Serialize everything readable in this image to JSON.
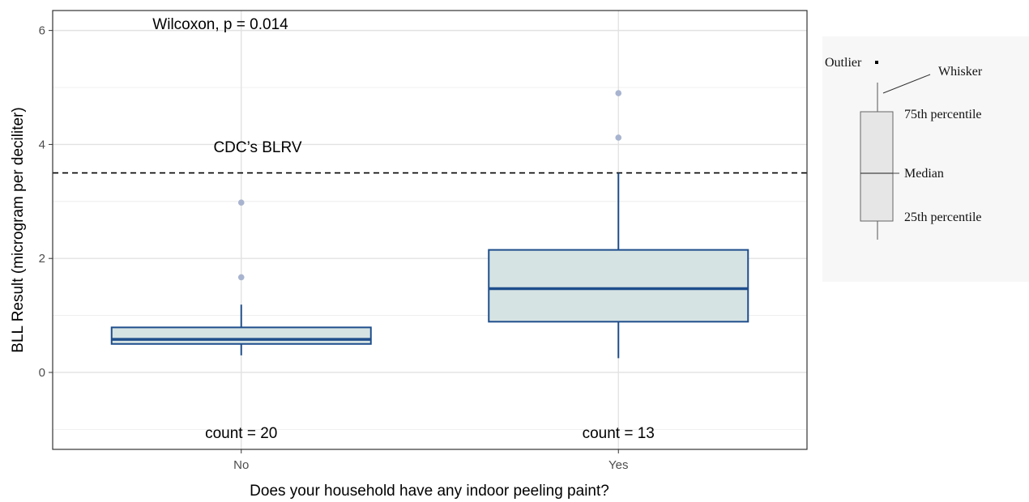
{
  "chart_data": {
    "type": "box",
    "xlabel": "Does your household have any indoor peeling paint?",
    "ylabel": "BLL Result (microgram per deciliter)",
    "ylim": [
      -1.35,
      6.35
    ],
    "yticks": [
      0,
      2,
      4,
      6
    ],
    "grid": true,
    "categories": [
      "No",
      "Yes"
    ],
    "boxes": [
      {
        "category": "No",
        "whisker_low": 0.3,
        "q1": 0.5,
        "median": 0.58,
        "q3": 0.79,
        "whisker_high": 1.19,
        "outliers": [
          1.67,
          2.98
        ]
      },
      {
        "category": "Yes",
        "whisker_low": 0.25,
        "q1": 0.89,
        "median": 1.47,
        "q3": 2.15,
        "whisker_high": 3.5,
        "outliers": [
          4.12,
          4.9
        ]
      }
    ],
    "counts": [
      "count = 20",
      "count = 13"
    ],
    "reference_line": {
      "y": 3.5,
      "label": "CDC’s BLRV",
      "style": "dashed"
    },
    "annotations": {
      "test": "Wilcoxon, p = 0.014"
    },
    "colors": {
      "box_stroke": "#1f4e8c",
      "box_fill": "#d6e3e3",
      "outlier": "#a8b4cf",
      "grid": "#ebebeb"
    }
  },
  "legend": {
    "outlier": "Outlier",
    "whisker": "Whisker",
    "q3": "75th percentile",
    "median": "Median",
    "q1": "25th percentile"
  }
}
